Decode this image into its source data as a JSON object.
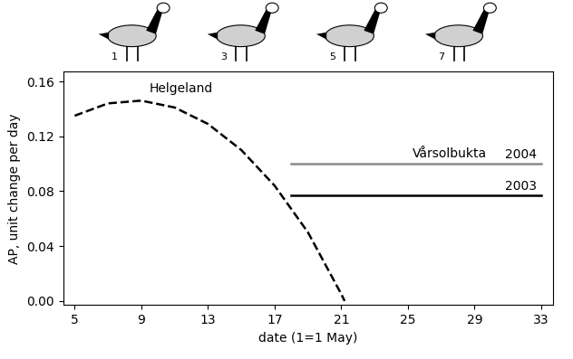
{
  "chart_data": {
    "type": "line",
    "x_label": "date (1=1 May)",
    "y_label": "AP, unit change per day",
    "xlim": [
      4.3,
      33.7
    ],
    "ylim": [
      -0.003,
      0.167
    ],
    "xticks": [
      5,
      9,
      13,
      17,
      21,
      25,
      29,
      33
    ],
    "yticks": [
      {
        "value": 0,
        "label": "0.00"
      },
      {
        "value": 0.04,
        "label": "0.04"
      },
      {
        "value": 0.08,
        "label": "0.08"
      },
      {
        "value": 0.12,
        "label": "0.12"
      },
      {
        "value": 0.16,
        "label": "0.16"
      }
    ],
    "grid": false,
    "icon_labels": [
      "1",
      "3",
      "5",
      "7"
    ],
    "annotations": [
      {
        "text": "Vårsolbukta",
        "x": 27.5,
        "y": 0.103
      }
    ],
    "series": [
      {
        "name": "Helgeland",
        "color": "#000000",
        "line_style": "dashed",
        "x": [
          5,
          7,
          9,
          11,
          13,
          15,
          17,
          19,
          21,
          21.2
        ],
        "values": [
          0.135,
          0.144,
          0.146,
          0.141,
          0.129,
          0.11,
          0.084,
          0.05,
          0.005,
          0.0
        ]
      },
      {
        "name": "2004",
        "color": "#8c8c8c",
        "line_style": "solid",
        "x": [
          18,
          33
        ],
        "values": [
          0.1,
          0.1
        ]
      },
      {
        "name": "2003",
        "color": "#000000",
        "line_style": "solid",
        "x": [
          18,
          33
        ],
        "values": [
          0.077,
          0.077
        ]
      }
    ]
  }
}
